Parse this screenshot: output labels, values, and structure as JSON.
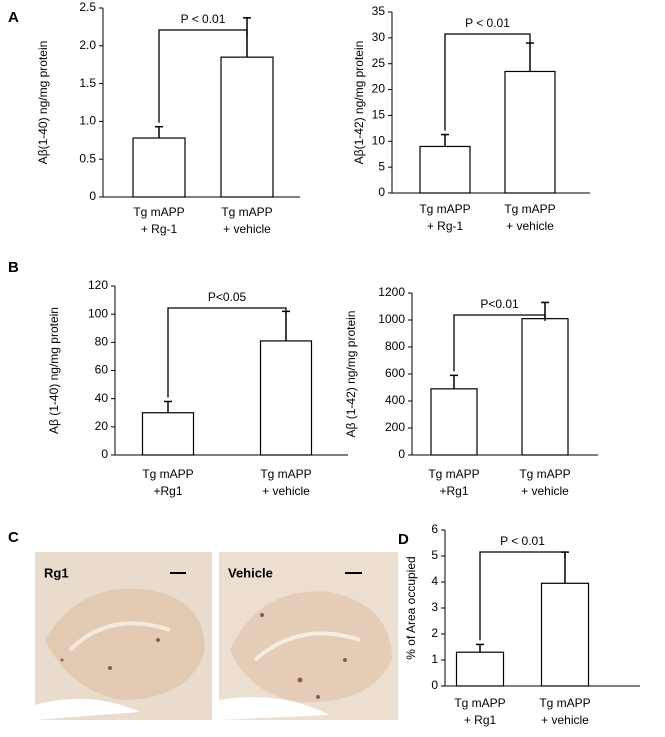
{
  "panel_labels": [
    "A",
    "B",
    "C",
    "D"
  ],
  "images": [
    "Rg1",
    "Vehicle"
  ],
  "chart_data": [
    {
      "type": "bar",
      "ylabel": "Aβ(1-40) ng/mg protein",
      "categories": [
        "Tg mAPP\n+ Rg-1",
        "Tg mAPP\n+ vehicle"
      ],
      "values": [
        0.78,
        1.85
      ],
      "errors": [
        0.15,
        0.52
      ],
      "color": "#ffffff",
      "annotation": "P < 0.01",
      "ylim": [
        0,
        2.5
      ],
      "yticks": [
        0,
        0.5,
        {
          "value": 1,
          "label": "1.0"
        },
        1.5,
        {
          "value": 2,
          "label": "2.0"
        },
        2.5
      ]
    },
    {
      "type": "bar",
      "ylabel": "Aβ(1-42) ng/mg protein",
      "categories": [
        "Tg mAPP\n+ Rg-1",
        "Tg mAPP\n+ vehicle"
      ],
      "values": [
        9,
        23.5
      ],
      "errors": [
        2.3,
        5.5
      ],
      "color": "#ffffff",
      "annotation": "P < 0.01",
      "ylim": [
        0,
        35
      ],
      "yticks": [
        0,
        5,
        10,
        15,
        20,
        25,
        30,
        35
      ]
    },
    {
      "type": "bar",
      "ylabel": "Aβ (1-40) ng/mg protein",
      "categories": [
        "Tg mAPP\n+Rg1",
        "Tg mAPP\n+ vehicle"
      ],
      "values": [
        30,
        81
      ],
      "errors": [
        8,
        21
      ],
      "color": "#ffffff",
      "annotation": "P<0.05",
      "ylim": [
        0,
        120
      ],
      "yticks": [
        0,
        20,
        40,
        60,
        80,
        100,
        120
      ]
    },
    {
      "type": "bar",
      "ylabel": "Aβ (1-42) ng/mg protein",
      "categories": [
        "Tg mAPP\n+Rg1",
        "Tg mAPP\n+ vehicle"
      ],
      "values": [
        490,
        1010
      ],
      "errors": [
        100,
        120
      ],
      "color": "#ffffff",
      "annotation": "P<0.01",
      "ylim": [
        0,
        1200
      ],
      "yticks": [
        0,
        200,
        400,
        600,
        800,
        1000,
        1200
      ]
    },
    {
      "type": "bar",
      "ylabel": "% of Area occupied",
      "categories": [
        "Tg mAPP\n+ Rg1",
        "Tg mAPP\n+ vehicle"
      ],
      "values": [
        1.3,
        3.95
      ],
      "errors": [
        0.3,
        1.2
      ],
      "color": "#ffffff",
      "annotation": "P < 0.01",
      "ylim": [
        0,
        6
      ],
      "yticks": [
        0,
        1,
        2,
        3,
        4,
        5,
        6
      ]
    }
  ]
}
